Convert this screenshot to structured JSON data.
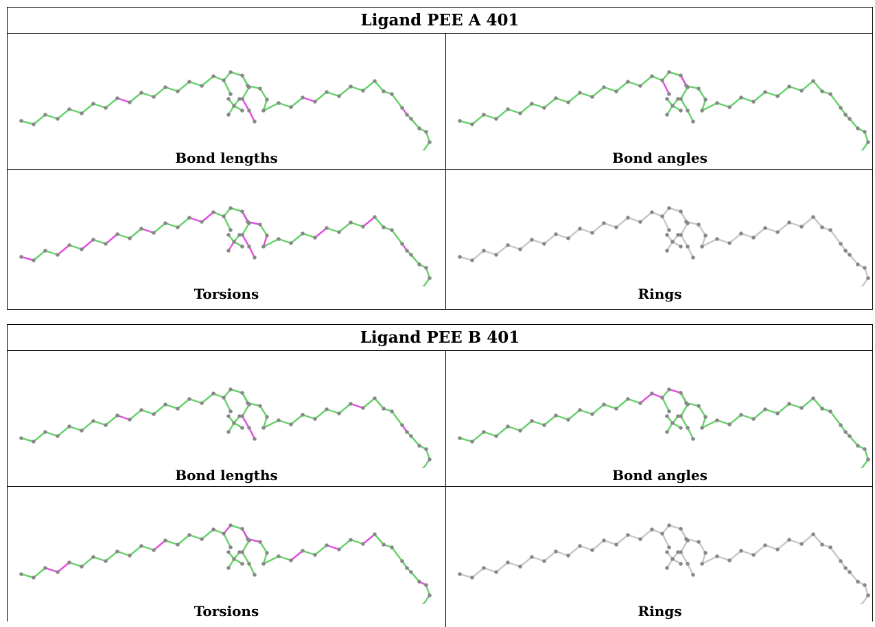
{
  "tables": [
    {
      "title": "Ligand PEE A 401",
      "panels": [
        {
          "caption": "Bond lengths",
          "style": "colored",
          "magenta": [
            8,
            21,
            22,
            31,
            40
          ]
        },
        {
          "caption": "Bond angles",
          "style": "colored",
          "magenta": [
            23,
            24
          ]
        },
        {
          "caption": "Torsions",
          "style": "colored",
          "magenta": [
            0,
            3,
            5,
            7,
            10,
            14,
            15,
            21,
            22,
            24,
            25,
            27,
            32,
            36,
            40,
            48
          ]
        },
        {
          "caption": "Rings",
          "style": "grey",
          "magenta": []
        }
      ]
    },
    {
      "title": "Ligand PEE B 401",
      "panels": [
        {
          "caption": "Bond lengths",
          "style": "colored",
          "magenta": [
            8,
            21,
            22,
            35,
            40
          ]
        },
        {
          "caption": "Bond angles",
          "style": "colored",
          "magenta": [
            15,
            16,
            18,
            19
          ]
        },
        {
          "caption": "Torsions",
          "style": "colored",
          "magenta": [
            2,
            3,
            11,
            17,
            24,
            25,
            30,
            33,
            36,
            43
          ]
        },
        {
          "caption": "Rings",
          "style": "grey",
          "magenta": []
        }
      ]
    }
  ],
  "colors": {
    "bond_ok": "#66d36a",
    "bond_outlier": "#e24ee2",
    "bond_grey": "#c8c8c8",
    "atom": "#888888"
  }
}
